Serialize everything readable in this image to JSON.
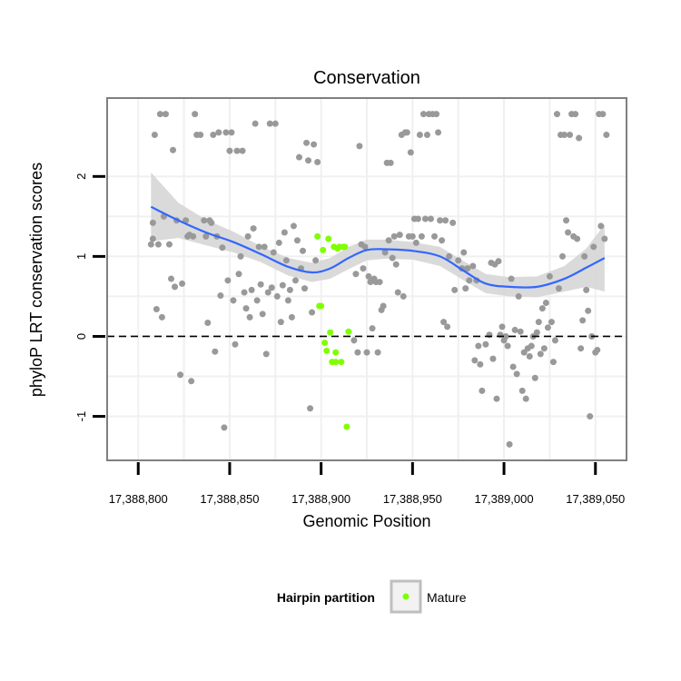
{
  "chart_data": {
    "type": "scatter",
    "title": "Conservation",
    "xlabel": "Genomic Position",
    "ylabel": "phyloP LRT conservation scores",
    "xlim": [
      17388783,
      17389067
    ],
    "ylim": [
      -1.55,
      2.98
    ],
    "x_ticks": [
      17388800,
      17388850,
      17388900,
      17388950,
      17389000,
      17389050
    ],
    "x_tick_labels": [
      "17,388,800",
      "17,388,850",
      "17,388,900",
      "17,388,950",
      "17,389,000",
      "17,389,050"
    ],
    "y_ticks": [
      -1,
      0,
      1,
      2
    ],
    "y_tick_labels": [
      "-1",
      "0",
      "1",
      "2"
    ],
    "reference_line_y": 0,
    "colors": {
      "other_points": "#999999",
      "mature_points": "#7fff00",
      "smooth_line": "#3366ff",
      "ribbon": "#d3d3d3",
      "panel_border": "#7f7f7f",
      "grid": "#f0f0f0"
    },
    "legend": {
      "title": "Hairpin partition",
      "position": "bottom",
      "entries": [
        {
          "label": "Mature",
          "color": "#7fff00"
        }
      ]
    },
    "smooth": {
      "x": [
        17388807,
        17388822,
        17388837,
        17388852,
        17388867,
        17388882,
        17388895,
        17388905,
        17388915,
        17388925,
        17388935,
        17388950,
        17388965,
        17388978,
        17388990,
        17389003,
        17389018,
        17389033,
        17389045,
        17389055
      ],
      "y": [
        1.62,
        1.45,
        1.3,
        1.18,
        1.03,
        0.87,
        0.8,
        0.85,
        0.98,
        1.08,
        1.09,
        1.07,
        1.0,
        0.82,
        0.66,
        0.62,
        0.62,
        0.72,
        0.86,
        0.98
      ],
      "lower": [
        1.19,
        1.23,
        1.14,
        1.05,
        0.93,
        0.76,
        0.68,
        0.72,
        0.84,
        0.95,
        0.97,
        0.96,
        0.88,
        0.7,
        0.54,
        0.5,
        0.49,
        0.56,
        0.62,
        0.56
      ],
      "upper": [
        2.05,
        1.67,
        1.46,
        1.31,
        1.13,
        0.98,
        0.92,
        0.98,
        1.12,
        1.21,
        1.21,
        1.18,
        1.12,
        0.94,
        0.78,
        0.74,
        0.75,
        0.88,
        1.1,
        1.4
      ]
    },
    "series": [
      {
        "name": "Other",
        "points": [
          [
            17388807,
            1.15
          ],
          [
            17388808,
            1.22
          ],
          [
            17388808,
            1.42
          ],
          [
            17388809,
            2.52
          ],
          [
            17388810,
            0.34
          ],
          [
            17388811,
            1.15
          ],
          [
            17388812,
            2.78
          ],
          [
            17388813,
            0.24
          ],
          [
            17388814,
            1.5
          ],
          [
            17388815,
            2.78
          ],
          [
            17388817,
            1.15
          ],
          [
            17388818,
            0.72
          ],
          [
            17388819,
            2.33
          ],
          [
            17388820,
            0.62
          ],
          [
            17388821,
            1.45
          ],
          [
            17388823,
            -0.48
          ],
          [
            17388824,
            0.66
          ],
          [
            17388826,
            1.45
          ],
          [
            17388827,
            1.25
          ],
          [
            17388828,
            1.27
          ],
          [
            17388829,
            -0.56
          ],
          [
            17388830,
            1.25
          ],
          [
            17388831,
            2.78
          ],
          [
            17388832,
            2.52
          ],
          [
            17388834,
            2.52
          ],
          [
            17388836,
            1.45
          ],
          [
            17388837,
            1.25
          ],
          [
            17388838,
            0.17
          ],
          [
            17388839,
            1.45
          ],
          [
            17388840,
            1.42
          ],
          [
            17388841,
            2.52
          ],
          [
            17388842,
            -0.19
          ],
          [
            17388843,
            1.25
          ],
          [
            17388844,
            2.55
          ],
          [
            17388845,
            0.51
          ],
          [
            17388846,
            1.11
          ],
          [
            17388847,
            -1.14
          ],
          [
            17388848,
            2.55
          ],
          [
            17388849,
            0.7
          ],
          [
            17388850,
            2.32
          ],
          [
            17388851,
            2.55
          ],
          [
            17388852,
            0.45
          ],
          [
            17388853,
            -0.1
          ],
          [
            17388854,
            2.32
          ],
          [
            17388855,
            0.78
          ],
          [
            17388856,
            1.0
          ],
          [
            17388857,
            2.32
          ],
          [
            17388858,
            0.55
          ],
          [
            17388859,
            0.35
          ],
          [
            17388860,
            1.25
          ],
          [
            17388861,
            0.24
          ],
          [
            17388862,
            0.58
          ],
          [
            17388863,
            1.35
          ],
          [
            17388864,
            2.66
          ],
          [
            17388865,
            0.45
          ],
          [
            17388866,
            1.12
          ],
          [
            17388867,
            0.65
          ],
          [
            17388868,
            0.28
          ],
          [
            17388869,
            1.12
          ],
          [
            17388870,
            -0.22
          ],
          [
            17388871,
            0.55
          ],
          [
            17388872,
            2.66
          ],
          [
            17388873,
            0.61
          ],
          [
            17388874,
            1.05
          ],
          [
            17388875,
            2.66
          ],
          [
            17388876,
            0.5
          ],
          [
            17388877,
            1.17
          ],
          [
            17388878,
            0.18
          ],
          [
            17388879,
            0.64
          ],
          [
            17388880,
            1.3
          ],
          [
            17388881,
            0.95
          ],
          [
            17388882,
            0.45
          ],
          [
            17388883,
            0.58
          ],
          [
            17388884,
            0.24
          ],
          [
            17388885,
            1.38
          ],
          [
            17388886,
            0.7
          ],
          [
            17388887,
            1.2
          ],
          [
            17388888,
            2.24
          ],
          [
            17388889,
            0.85
          ],
          [
            17388890,
            1.07
          ],
          [
            17388891,
            0.6
          ],
          [
            17388892,
            2.42
          ],
          [
            17388893,
            2.2
          ],
          [
            17388894,
            -0.9
          ],
          [
            17388895,
            0.3
          ],
          [
            17388896,
            2.4
          ],
          [
            17388897,
            0.95
          ],
          [
            17388898,
            2.18
          ],
          [
            17388918,
            -0.05
          ],
          [
            17388919,
            0.78
          ],
          [
            17388920,
            -0.2
          ],
          [
            17388921,
            2.38
          ],
          [
            17388922,
            1.15
          ],
          [
            17388923,
            0.85
          ],
          [
            17388924,
            1.12
          ],
          [
            17388925,
            -0.2
          ],
          [
            17388926,
            0.75
          ],
          [
            17388927,
            0.68
          ],
          [
            17388928,
            0.1
          ],
          [
            17388929,
            0.72
          ],
          [
            17388930,
            0.68
          ],
          [
            17388931,
            -0.2
          ],
          [
            17388932,
            0.68
          ],
          [
            17388933,
            0.33
          ],
          [
            17388934,
            0.38
          ],
          [
            17388935,
            1.05
          ],
          [
            17388936,
            2.17
          ],
          [
            17388937,
            1.2
          ],
          [
            17388938,
            2.17
          ],
          [
            17388939,
            0.98
          ],
          [
            17388940,
            1.25
          ],
          [
            17388941,
            0.9
          ],
          [
            17388942,
            0.55
          ],
          [
            17388943,
            1.27
          ],
          [
            17388944,
            2.52
          ],
          [
            17388945,
            0.5
          ],
          [
            17388946,
            2.55
          ],
          [
            17388947,
            2.55
          ],
          [
            17388948,
            1.25
          ],
          [
            17388949,
            2.3
          ],
          [
            17388950,
            1.25
          ],
          [
            17388951,
            1.47
          ],
          [
            17388952,
            1.17
          ],
          [
            17388953,
            1.47
          ],
          [
            17388954,
            2.52
          ],
          [
            17388955,
            1.25
          ],
          [
            17388956,
            2.78
          ],
          [
            17388957,
            1.47
          ],
          [
            17388958,
            2.52
          ],
          [
            17388959,
            2.78
          ],
          [
            17388960,
            1.47
          ],
          [
            17388961,
            2.78
          ],
          [
            17388962,
            1.25
          ],
          [
            17388963,
            2.78
          ],
          [
            17388964,
            2.55
          ],
          [
            17388965,
            1.45
          ],
          [
            17388966,
            1.2
          ],
          [
            17388967,
            0.18
          ],
          [
            17388968,
            1.45
          ],
          [
            17388969,
            0.12
          ],
          [
            17388970,
            1.0
          ],
          [
            17388972,
            1.42
          ],
          [
            17388973,
            0.58
          ],
          [
            17388975,
            0.95
          ],
          [
            17388977,
            0.85
          ],
          [
            17388978,
            1.05
          ],
          [
            17388979,
            0.6
          ],
          [
            17388980,
            0.85
          ],
          [
            17388981,
            0.7
          ],
          [
            17388983,
            0.88
          ],
          [
            17388984,
            -0.3
          ],
          [
            17388985,
            0.7
          ],
          [
            17388986,
            -0.12
          ],
          [
            17388987,
            -0.35
          ],
          [
            17388988,
            -0.68
          ],
          [
            17388990,
            -0.1
          ],
          [
            17388992,
            0.02
          ],
          [
            17388993,
            0.92
          ],
          [
            17388994,
            -0.28
          ],
          [
            17388995,
            0.9
          ],
          [
            17388996,
            -0.78
          ],
          [
            17388997,
            0.94
          ],
          [
            17388998,
            0.02
          ],
          [
            17388999,
            0.12
          ],
          [
            17389000,
            -0.05
          ],
          [
            17389001,
            0.0
          ],
          [
            17389002,
            -0.12
          ],
          [
            17389003,
            -1.35
          ],
          [
            17389004,
            0.72
          ],
          [
            17389005,
            -0.38
          ],
          [
            17389006,
            0.08
          ],
          [
            17389007,
            -0.47
          ],
          [
            17389008,
            0.5
          ],
          [
            17389009,
            0.06
          ],
          [
            17389010,
            -0.68
          ],
          [
            17389011,
            -0.2
          ],
          [
            17389012,
            -0.78
          ],
          [
            17389013,
            -0.15
          ],
          [
            17389014,
            -0.25
          ],
          [
            17389015,
            -0.12
          ],
          [
            17389016,
            0.0
          ],
          [
            17389017,
            -0.52
          ],
          [
            17389018,
            0.05
          ],
          [
            17389019,
            0.18
          ],
          [
            17389020,
            -0.22
          ],
          [
            17389021,
            0.35
          ],
          [
            17389022,
            -0.15
          ],
          [
            17389023,
            0.42
          ],
          [
            17389024,
            0.11
          ],
          [
            17389025,
            0.75
          ],
          [
            17389026,
            0.18
          ],
          [
            17389027,
            -0.32
          ],
          [
            17389028,
            -0.05
          ],
          [
            17389029,
            2.78
          ],
          [
            17389030,
            0.6
          ],
          [
            17389031,
            2.52
          ],
          [
            17389032,
            1.0
          ],
          [
            17389033,
            2.52
          ],
          [
            17389034,
            1.45
          ],
          [
            17389035,
            1.3
          ],
          [
            17389036,
            2.52
          ],
          [
            17389037,
            2.78
          ],
          [
            17389038,
            1.25
          ],
          [
            17389039,
            2.78
          ],
          [
            17389040,
            1.22
          ],
          [
            17389041,
            2.48
          ],
          [
            17389042,
            -0.15
          ],
          [
            17389043,
            0.2
          ],
          [
            17389044,
            1.0
          ],
          [
            17389045,
            0.58
          ],
          [
            17389046,
            0.32
          ],
          [
            17389047,
            -1.0
          ],
          [
            17389048,
            0.0
          ],
          [
            17389049,
            1.12
          ],
          [
            17389050,
            -0.2
          ],
          [
            17389051,
            -0.17
          ],
          [
            17389052,
            2.78
          ],
          [
            17389053,
            1.38
          ],
          [
            17389054,
            2.78
          ],
          [
            17389055,
            1.22
          ],
          [
            17389056,
            2.52
          ]
        ]
      },
      {
        "name": "Mature",
        "points": [
          [
            17388898,
            1.25
          ],
          [
            17388899,
            0.38
          ],
          [
            17388900,
            0.38
          ],
          [
            17388901,
            1.08
          ],
          [
            17388902,
            -0.08
          ],
          [
            17388903,
            -0.18
          ],
          [
            17388904,
            1.22
          ],
          [
            17388905,
            0.05
          ],
          [
            17388906,
            -0.32
          ],
          [
            17388907,
            1.12
          ],
          [
            17388908,
            -0.2
          ],
          [
            17388908,
            -0.32
          ],
          [
            17388909,
            1.1
          ],
          [
            17388910,
            1.12
          ],
          [
            17388911,
            -0.32
          ],
          [
            17388912,
            1.12
          ],
          [
            17388913,
            1.12
          ],
          [
            17388914,
            -1.13
          ],
          [
            17388915,
            0.06
          ]
        ]
      }
    ]
  }
}
